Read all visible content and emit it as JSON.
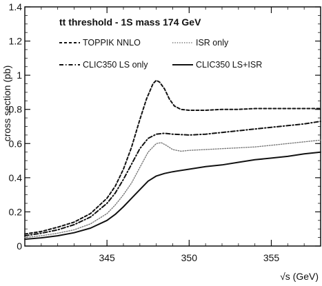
{
  "chart_data": {
    "type": "line",
    "title": "tt threshold - 1S mass 174 GeV",
    "xlabel": "√s (GeV)",
    "ylabel": "cross section (pb)",
    "xlim": [
      340,
      358
    ],
    "ylim": [
      0,
      1.4
    ],
    "xticks": [
      345,
      350,
      355
    ],
    "yticks": [
      0,
      0.2,
      0.4,
      0.6,
      0.8,
      1,
      1.2,
      1.4
    ],
    "xtick_labels": [
      "345",
      "350",
      "355"
    ],
    "ytick_labels": [
      "0",
      "0.2",
      "0.4",
      "0.6",
      "0.8",
      "1",
      "1.2",
      "1.4"
    ],
    "grid": false,
    "legend_position": "top",
    "series": [
      {
        "name": "TOPPIK NNLO",
        "style": "dashed",
        "color": "#111111",
        "x": [
          340,
          341,
          342,
          343,
          344,
          345,
          345.5,
          346,
          346.5,
          347,
          347.4,
          347.8,
          348.0,
          348.2,
          348.5,
          348.8,
          349.1,
          349.5,
          350,
          351,
          352,
          353,
          354,
          355,
          356,
          357,
          358
        ],
        "y": [
          0.07,
          0.085,
          0.11,
          0.14,
          0.19,
          0.28,
          0.35,
          0.45,
          0.58,
          0.74,
          0.86,
          0.95,
          0.97,
          0.96,
          0.92,
          0.86,
          0.82,
          0.8,
          0.795,
          0.795,
          0.8,
          0.8,
          0.805,
          0.805,
          0.805,
          0.805,
          0.805
        ]
      },
      {
        "name": "ISR only",
        "style": "dotted",
        "color": "#777777",
        "x": [
          340,
          341,
          342,
          343,
          344,
          345,
          345.5,
          346,
          346.5,
          347,
          347.5,
          348.0,
          348.3,
          348.6,
          349,
          349.5,
          350,
          351,
          352,
          353,
          354,
          355,
          356,
          357,
          358
        ],
        "y": [
          0.05,
          0.06,
          0.075,
          0.095,
          0.13,
          0.19,
          0.24,
          0.3,
          0.37,
          0.46,
          0.55,
          0.6,
          0.605,
          0.59,
          0.565,
          0.555,
          0.56,
          0.565,
          0.57,
          0.575,
          0.58,
          0.59,
          0.6,
          0.61,
          0.62
        ]
      },
      {
        "name": "CLIC350 LS only",
        "style": "dashdot",
        "color": "#111111",
        "x": [
          340,
          341,
          342,
          343,
          344,
          345,
          345.5,
          346,
          346.5,
          347,
          347.5,
          348.0,
          348.5,
          349,
          350,
          351,
          352,
          353,
          354,
          355,
          356,
          357,
          358
        ],
        "y": [
          0.06,
          0.075,
          0.095,
          0.125,
          0.17,
          0.25,
          0.31,
          0.39,
          0.48,
          0.57,
          0.63,
          0.655,
          0.66,
          0.655,
          0.65,
          0.655,
          0.665,
          0.675,
          0.685,
          0.695,
          0.705,
          0.715,
          0.73
        ]
      },
      {
        "name": "CLIC350 LS+ISR",
        "style": "solid",
        "color": "#111111",
        "x": [
          340,
          341,
          342,
          343,
          344,
          345,
          345.5,
          346,
          346.5,
          347,
          347.5,
          348.0,
          348.5,
          349,
          350,
          351,
          352,
          353,
          354,
          355,
          356,
          357,
          358
        ],
        "y": [
          0.04,
          0.048,
          0.06,
          0.078,
          0.105,
          0.15,
          0.185,
          0.23,
          0.28,
          0.33,
          0.38,
          0.41,
          0.425,
          0.435,
          0.45,
          0.465,
          0.475,
          0.49,
          0.505,
          0.515,
          0.525,
          0.54,
          0.55
        ]
      }
    ]
  }
}
